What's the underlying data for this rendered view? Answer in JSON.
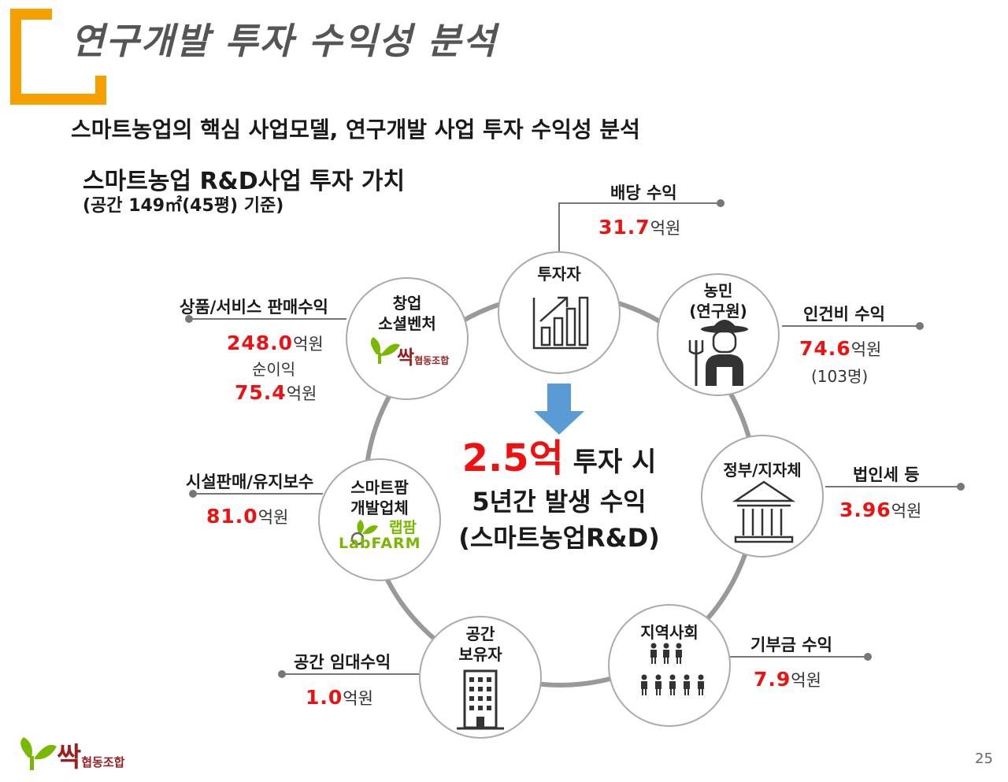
{
  "title": "연구개발 투자 수익성 분석",
  "subtitle": "스마트농업의 핵심 사업모델, 연구개발 사업 투자 수익성 분석",
  "section": {
    "title": "스마트농업 R&D사업 투자 가치",
    "note": "(공간 149㎡(45평) 기준)"
  },
  "center": {
    "amount": "2.5억",
    "suffix": " 투자 시",
    "line2": "5년간 발생 수익",
    "line3": "(스마트농업R&D)"
  },
  "nodes": {
    "investor": {
      "label": "투자자"
    },
    "farmer": {
      "label1": "농민",
      "label2": "(연구원)"
    },
    "gov": {
      "label": "정부/지자체"
    },
    "community": {
      "label": "지역사회"
    },
    "owner": {
      "label1": "공간",
      "label2": "보유자"
    },
    "developer": {
      "label1": "스마트팜",
      "label2": "개발업체",
      "logo_ko": "랩팜",
      "logo_en": "LabFARM"
    },
    "startup": {
      "label1": "창업",
      "label2": "소셜벤처",
      "logo_ko": "싹",
      "logo_sub": "협동조합"
    }
  },
  "revenues": {
    "dividend": {
      "label": "배당 수익",
      "value": "31.7",
      "unit": "억원"
    },
    "labor": {
      "label": "인건비 수익",
      "value": "74.6",
      "unit": "억원",
      "note": "(103명)"
    },
    "tax": {
      "label": "법인세 등",
      "value": "3.96",
      "unit": "억원"
    },
    "donation": {
      "label": "기부금 수익",
      "value": "7.9",
      "unit": "억원"
    },
    "rent": {
      "label": "공간 임대수익",
      "value": "1.0",
      "unit": "억원"
    },
    "facility": {
      "label": "시설판매/유지보수",
      "value": "81.0",
      "unit": "억원"
    },
    "sales": {
      "label": "상품/서비스 판매수익",
      "value": "248.0",
      "unit": "억원",
      "net_label": "순이익",
      "net_value": "75.4",
      "net_unit": "억원"
    }
  },
  "footer": {
    "logo_ko": "싹",
    "logo_sub": "협동조합",
    "page": "25"
  },
  "colors": {
    "accent": "#f5a000",
    "value_red": "#ee1111",
    "arrow": "#5b9bd5",
    "ring": "#999999"
  }
}
